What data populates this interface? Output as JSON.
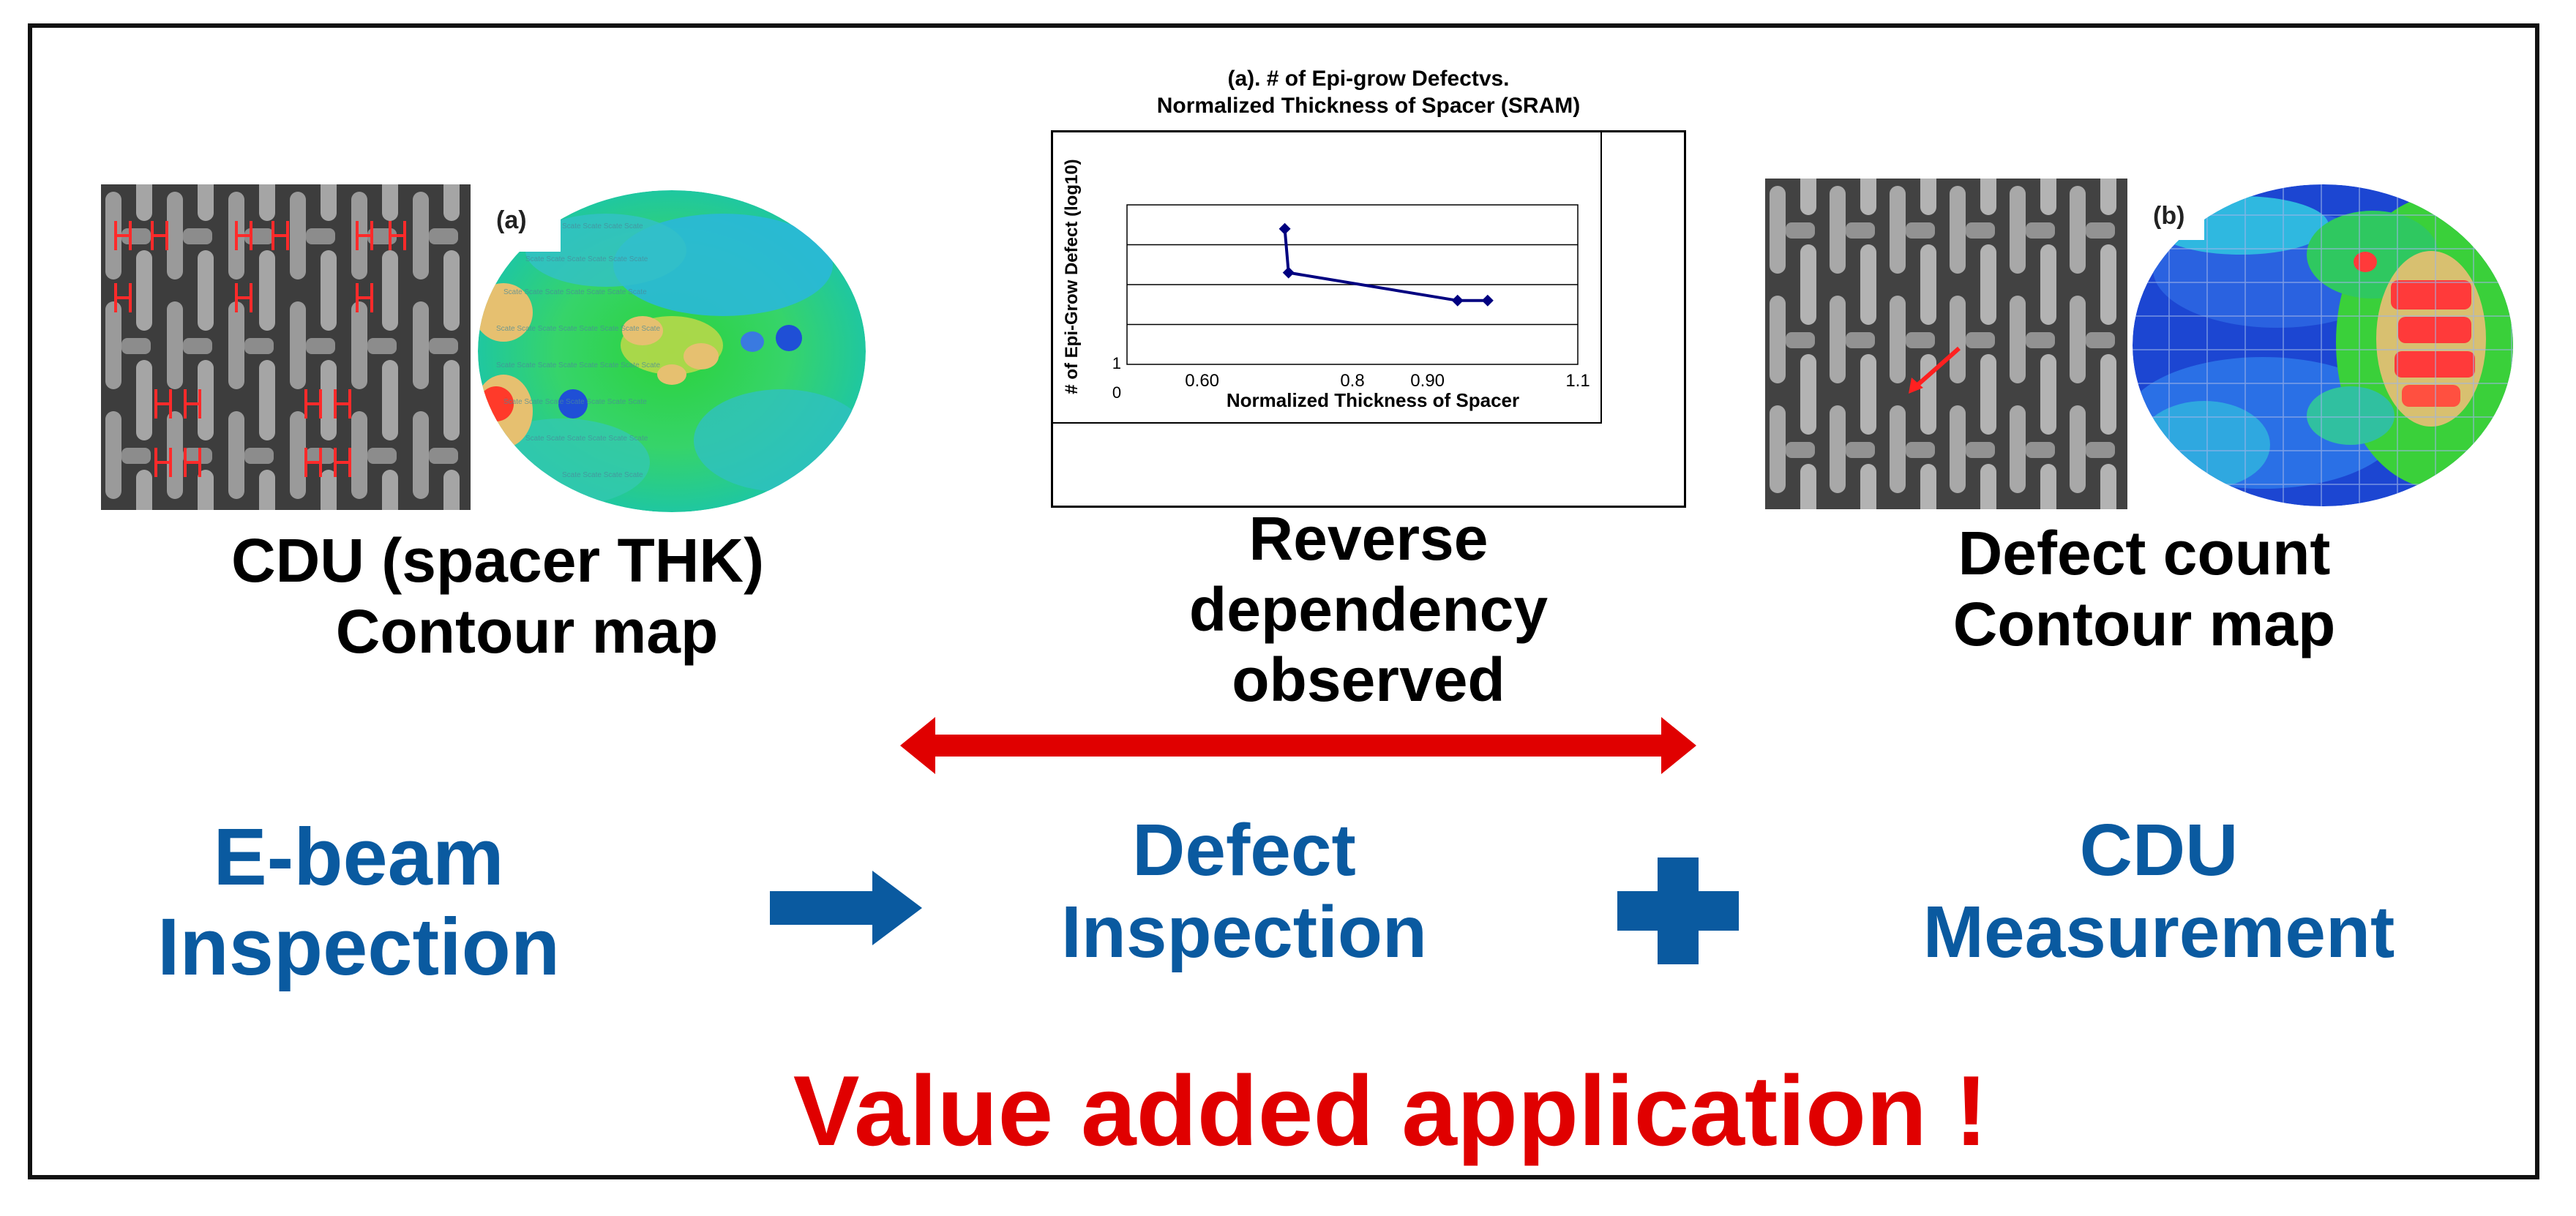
{
  "left": {
    "wafer_label": "(a)",
    "caption_line1": "CDU (spacer THK)",
    "caption_line2": "Contour map"
  },
  "center": {
    "chart_box_title_line1": "(a). # of Epi-grow Defectvs.",
    "chart_box_title_line2": "Normalized Thickness of Spacer (SRAM)",
    "caption_line1": "Reverse",
    "caption_line2": "dependency",
    "caption_line3": "observed"
  },
  "right": {
    "wafer_label": "(b)",
    "caption_line1": "Defect count",
    "caption_line2": "Contour map"
  },
  "flow": {
    "step1_line1": "E-beam",
    "step1_line2": "Inspection",
    "step2_line1": "Defect",
    "step2_line2": "Inspection",
    "step3_line1": "CDU",
    "step3_line2": "Measurement",
    "tagline": "Value added application !"
  },
  "colors": {
    "blue_text": "#0a5aa0",
    "red_accent": "#e00000",
    "chart_line": "#000080"
  },
  "chart_data": {
    "type": "line",
    "title": "(a). # of Epi-grow Defectvs. Normalized Thickness of Spacer (SRAM)",
    "xlabel": "Normalized  Thickness of Spacer",
    "ylabel": "# of Epi-Grow Defect (log10)",
    "x_tick_labels": [
      "0.60",
      "0.8",
      "0.90",
      "1.1"
    ],
    "x_ticks": [
      0.6,
      0.8,
      0.9,
      1.1
    ],
    "y_tick_labels": [
      "1",
      "0"
    ],
    "xlim": [
      0.5,
      1.1
    ],
    "ylim": [
      0,
      4
    ],
    "grid": true,
    "series": [
      {
        "x": [
          0.71,
          0.715,
          0.94,
          0.98
        ],
        "y": [
          3.4,
          2.3,
          1.6,
          1.6
        ]
      }
    ]
  }
}
